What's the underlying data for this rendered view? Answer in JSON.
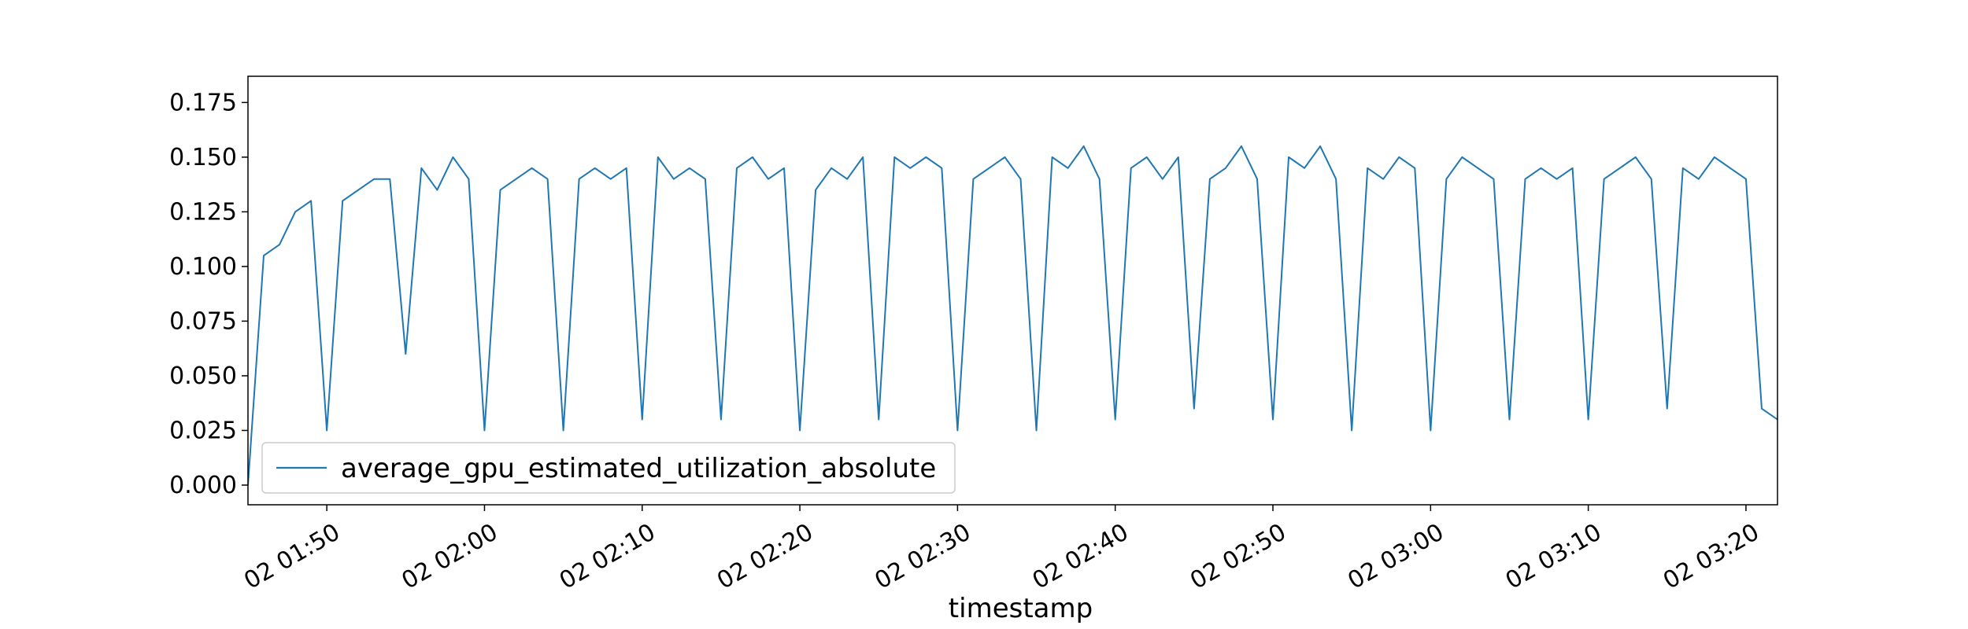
{
  "chart_data": {
    "type": "line",
    "title": "",
    "xlabel": "timestamp",
    "ylabel": "",
    "grid": false,
    "legend_position": "lower-left",
    "x_start": "02 01:45",
    "x_end": "02 03:22",
    "xlim": [
      "02 01:45",
      "02 03:22"
    ],
    "ylim": [
      -0.009,
      0.187
    ],
    "x_ticks": [
      {
        "t": "02 01:50",
        "label": "02 01:50"
      },
      {
        "t": "02 02:00",
        "label": "02 02:00"
      },
      {
        "t": "02 02:10",
        "label": "02 02:10"
      },
      {
        "t": "02 02:20",
        "label": "02 02:20"
      },
      {
        "t": "02 02:30",
        "label": "02 02:30"
      },
      {
        "t": "02 02:40",
        "label": "02 02:40"
      },
      {
        "t": "02 02:50",
        "label": "02 02:50"
      },
      {
        "t": "02 03:00",
        "label": "02 03:00"
      },
      {
        "t": "02 03:10",
        "label": "02 03:10"
      },
      {
        "t": "02 03:20",
        "label": "02 03:20"
      }
    ],
    "y_ticks": [
      {
        "v": 0.0,
        "label": "0.000"
      },
      {
        "v": 0.025,
        "label": "0.025"
      },
      {
        "v": 0.05,
        "label": "0.050"
      },
      {
        "v": 0.075,
        "label": "0.075"
      },
      {
        "v": 0.1,
        "label": "0.100"
      },
      {
        "v": 0.125,
        "label": "0.125"
      },
      {
        "v": 0.15,
        "label": "0.150"
      },
      {
        "v": 0.175,
        "label": "0.175"
      }
    ],
    "series": [
      {
        "name": "average_gpu_estimated_utilization_absolute",
        "color": "#1f77b4",
        "points": [
          [
            "02 01:45",
            0.0
          ],
          [
            "02 01:46",
            0.105
          ],
          [
            "02 01:47",
            0.11
          ],
          [
            "02 01:48",
            0.125
          ],
          [
            "02 01:49",
            0.13
          ],
          [
            "02 01:50",
            0.025
          ],
          [
            "02 01:51",
            0.13
          ],
          [
            "02 01:52",
            0.135
          ],
          [
            "02 01:53",
            0.14
          ],
          [
            "02 01:54",
            0.14
          ],
          [
            "02 01:55",
            0.06
          ],
          [
            "02 01:56",
            0.145
          ],
          [
            "02 01:57",
            0.135
          ],
          [
            "02 01:58",
            0.15
          ],
          [
            "02 01:59",
            0.14
          ],
          [
            "02 02:00",
            0.025
          ],
          [
            "02 02:01",
            0.135
          ],
          [
            "02 02:02",
            0.14
          ],
          [
            "02 02:03",
            0.145
          ],
          [
            "02 02:04",
            0.14
          ],
          [
            "02 02:05",
            0.025
          ],
          [
            "02 02:06",
            0.14
          ],
          [
            "02 02:07",
            0.145
          ],
          [
            "02 02:08",
            0.14
          ],
          [
            "02 02:09",
            0.145
          ],
          [
            "02 02:10",
            0.03
          ],
          [
            "02 02:11",
            0.15
          ],
          [
            "02 02:12",
            0.14
          ],
          [
            "02 02:13",
            0.145
          ],
          [
            "02 02:14",
            0.14
          ],
          [
            "02 02:15",
            0.03
          ],
          [
            "02 02:16",
            0.145
          ],
          [
            "02 02:17",
            0.15
          ],
          [
            "02 02:18",
            0.14
          ],
          [
            "02 02:19",
            0.145
          ],
          [
            "02 02:20",
            0.025
          ],
          [
            "02 02:21",
            0.135
          ],
          [
            "02 02:22",
            0.145
          ],
          [
            "02 02:23",
            0.14
          ],
          [
            "02 02:24",
            0.15
          ],
          [
            "02 02:25",
            0.03
          ],
          [
            "02 02:26",
            0.15
          ],
          [
            "02 02:27",
            0.145
          ],
          [
            "02 02:28",
            0.15
          ],
          [
            "02 02:29",
            0.145
          ],
          [
            "02 02:30",
            0.025
          ],
          [
            "02 02:31",
            0.14
          ],
          [
            "02 02:32",
            0.145
          ],
          [
            "02 02:33",
            0.15
          ],
          [
            "02 02:34",
            0.14
          ],
          [
            "02 02:35",
            0.025
          ],
          [
            "02 02:36",
            0.15
          ],
          [
            "02 02:37",
            0.145
          ],
          [
            "02 02:38",
            0.155
          ],
          [
            "02 02:39",
            0.14
          ],
          [
            "02 02:40",
            0.03
          ],
          [
            "02 02:41",
            0.145
          ],
          [
            "02 02:42",
            0.15
          ],
          [
            "02 02:43",
            0.14
          ],
          [
            "02 02:44",
            0.15
          ],
          [
            "02 02:45",
            0.035
          ],
          [
            "02 02:46",
            0.14
          ],
          [
            "02 02:47",
            0.145
          ],
          [
            "02 02:48",
            0.155
          ],
          [
            "02 02:49",
            0.14
          ],
          [
            "02 02:50",
            0.03
          ],
          [
            "02 02:51",
            0.15
          ],
          [
            "02 02:52",
            0.145
          ],
          [
            "02 02:53",
            0.155
          ],
          [
            "02 02:54",
            0.14
          ],
          [
            "02 02:55",
            0.025
          ],
          [
            "02 02:56",
            0.145
          ],
          [
            "02 02:57",
            0.14
          ],
          [
            "02 02:58",
            0.15
          ],
          [
            "02 02:59",
            0.145
          ],
          [
            "02 03:00",
            0.025
          ],
          [
            "02 03:01",
            0.14
          ],
          [
            "02 03:02",
            0.15
          ],
          [
            "02 03:03",
            0.145
          ],
          [
            "02 03:04",
            0.14
          ],
          [
            "02 03:05",
            0.03
          ],
          [
            "02 03:06",
            0.14
          ],
          [
            "02 03:07",
            0.145
          ],
          [
            "02 03:08",
            0.14
          ],
          [
            "02 03:09",
            0.145
          ],
          [
            "02 03:10",
            0.03
          ],
          [
            "02 03:11",
            0.14
          ],
          [
            "02 03:12",
            0.145
          ],
          [
            "02 03:13",
            0.15
          ],
          [
            "02 03:14",
            0.14
          ],
          [
            "02 03:15",
            0.035
          ],
          [
            "02 03:16",
            0.145
          ],
          [
            "02 03:17",
            0.14
          ],
          [
            "02 03:18",
            0.15
          ],
          [
            "02 03:19",
            0.145
          ],
          [
            "02 03:20",
            0.14
          ],
          [
            "02 03:21",
            0.035
          ],
          [
            "02 03:22",
            0.03
          ]
        ]
      }
    ]
  }
}
